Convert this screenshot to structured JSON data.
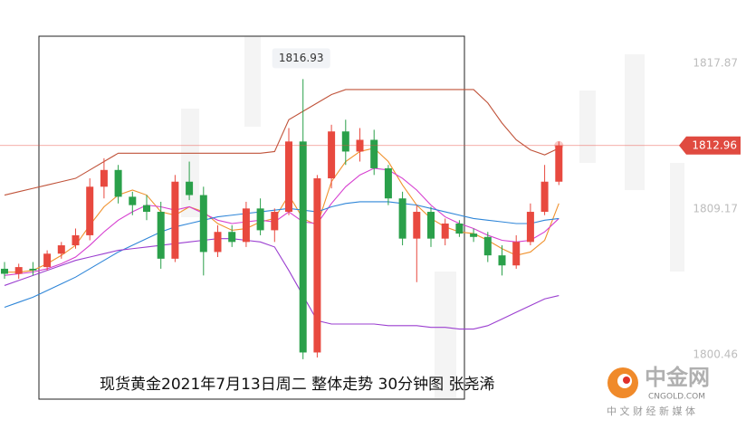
{
  "chart_data": {
    "type": "candlestick",
    "caption": "现货黄金2021年7月13日周二 整体走势  30分钟图 张尧浠",
    "logo": {
      "name": "中金网",
      "site": "CNGOLD.COM",
      "slogan": "中 文 财 经 新 媒 体"
    },
    "up_color": "#e8493f",
    "down_color": "#2aa04a",
    "ylim": [
      1796.03,
      1821.65
    ],
    "yticks": [
      1800.46,
      1809.17,
      1817.87
    ],
    "open": [
      1805.6,
      1805.3,
      1805.6,
      1805.7,
      1806.5,
      1807.0,
      1807.6,
      1810.5,
      1811.5,
      1809.9,
      1809.4,
      1809.0,
      1806.2,
      1810.8,
      1810.0,
      1806.6,
      1807.8,
      1807.2,
      1809.2,
      1807.9,
      1809.0,
      1813.2,
      1800.6,
      1811.0,
      1813.8,
      1812.6,
      1813.3,
      1811.6,
      1809.8,
      1807.4,
      1809.0,
      1807.4,
      1808.3,
      1807.7,
      1807.5,
      1806.4,
      1805.8,
      1807.2,
      1809.0,
      1810.8
    ],
    "high": [
      1806.0,
      1805.9,
      1806.0,
      1806.7,
      1807.2,
      1808.0,
      1811.0,
      1812.2,
      1811.8,
      1810.2,
      1810.0,
      1809.6,
      1811.2,
      1812.0,
      1810.5,
      1808.2,
      1808.2,
      1809.6,
      1809.8,
      1809.2,
      1814.0,
      1816.93,
      1811.2,
      1814.2,
      1814.5,
      1814.0,
      1813.9,
      1811.8,
      1810.2,
      1809.4,
      1809.3,
      1808.6,
      1808.5,
      1808.0,
      1807.8,
      1807.0,
      1807.6,
      1809.5,
      1811.8,
      1813.2
    ],
    "low": [
      1805.0,
      1805.0,
      1805.2,
      1805.5,
      1806.2,
      1806.8,
      1807.3,
      1809.8,
      1809.5,
      1808.8,
      1808.5,
      1805.6,
      1806.0,
      1809.7,
      1805.2,
      1806.3,
      1806.9,
      1806.9,
      1807.6,
      1807.2,
      1808.8,
      1800.2,
      1800.3,
      1810.4,
      1811.8,
      1812.0,
      1811.2,
      1809.4,
      1807.0,
      1804.8,
      1806.9,
      1807.0,
      1807.5,
      1807.2,
      1806.0,
      1805.2,
      1805.6,
      1807.0,
      1808.8,
      1810.6
    ],
    "close": [
      1805.3,
      1805.7,
      1805.5,
      1806.5,
      1807.0,
      1807.6,
      1810.5,
      1811.5,
      1809.9,
      1809.4,
      1809.0,
      1806.2,
      1810.8,
      1810.0,
      1806.6,
      1807.8,
      1807.2,
      1809.2,
      1807.9,
      1809.0,
      1813.2,
      1800.6,
      1811.0,
      1813.8,
      1812.6,
      1813.3,
      1811.6,
      1809.8,
      1807.4,
      1809.0,
      1807.4,
      1808.3,
      1807.7,
      1807.5,
      1806.4,
      1805.8,
      1807.2,
      1809.0,
      1810.8,
      1812.96
    ],
    "overlays": [
      {
        "color": "#c0533a",
        "values": [
          1810.0,
          1810.2,
          1810.4,
          1810.6,
          1810.8,
          1811.0,
          1811.5,
          1812.0,
          1812.5,
          1812.5,
          1812.5,
          1812.5,
          1812.5,
          1812.5,
          1812.5,
          1812.5,
          1812.5,
          1812.5,
          1812.5,
          1812.6,
          1814.5,
          1815.0,
          1815.5,
          1816.0,
          1816.3,
          1816.3,
          1816.3,
          1816.3,
          1816.3,
          1816.3,
          1816.3,
          1816.3,
          1816.3,
          1816.3,
          1815.5,
          1814.3,
          1813.3,
          1812.7,
          1812.4,
          1812.8
        ]
      },
      {
        "color": "#f0922e",
        "values": [
          1805.4,
          1805.4,
          1805.5,
          1805.9,
          1806.4,
          1807.0,
          1808.2,
          1809.3,
          1810.0,
          1810.3,
          1810.0,
          1809.0,
          1808.8,
          1809.3,
          1809.0,
          1808.3,
          1807.9,
          1808.0,
          1808.4,
          1808.6,
          1810.0,
          1808.6,
          1808.2,
          1810.8,
          1812.0,
          1812.6,
          1812.8,
          1812.0,
          1810.6,
          1809.4,
          1808.6,
          1808.1,
          1807.8,
          1807.7,
          1807.3,
          1806.8,
          1806.4,
          1806.6,
          1807.3,
          1809.5
        ]
      },
      {
        "color": "#d63fd0",
        "values": [
          1805.2,
          1805.3,
          1805.4,
          1805.6,
          1805.9,
          1806.3,
          1807.0,
          1807.8,
          1808.5,
          1809.0,
          1809.4,
          1809.3,
          1809.1,
          1809.3,
          1808.9,
          1808.5,
          1808.3,
          1808.4,
          1808.5,
          1808.4,
          1809.0,
          1808.4,
          1808.3,
          1809.5,
          1810.5,
          1811.2,
          1811.6,
          1811.5,
          1811.0,
          1810.3,
          1809.4,
          1808.7,
          1808.3,
          1808.0,
          1807.6,
          1807.3,
          1807.2,
          1807.3,
          1807.8,
          1808.6
        ]
      },
      {
        "color": "#2f86d8",
        "values": [
          1803.3,
          1803.6,
          1803.9,
          1804.3,
          1804.7,
          1805.1,
          1805.6,
          1806.1,
          1806.6,
          1807.0,
          1807.4,
          1807.8,
          1808.1,
          1808.3,
          1808.5,
          1808.7,
          1808.8,
          1808.9,
          1809.0,
          1809.1,
          1809.2,
          1809.1,
          1809.0,
          1809.3,
          1809.5,
          1809.6,
          1809.6,
          1809.6,
          1809.5,
          1809.4,
          1809.2,
          1809.0,
          1808.8,
          1808.6,
          1808.5,
          1808.4,
          1808.3,
          1808.3,
          1808.5,
          1808.6
        ]
      },
      {
        "color": "#9b3fd0",
        "values": [
          1804.6,
          1804.9,
          1805.2,
          1805.5,
          1805.8,
          1806.1,
          1806.3,
          1806.5,
          1806.7,
          1806.8,
          1806.9,
          1807.0,
          1807.1,
          1807.2,
          1807.3,
          1807.4,
          1807.4,
          1807.3,
          1807.2,
          1806.9,
          1805.5,
          1804.0,
          1802.5,
          1802.3,
          1802.3,
          1802.3,
          1802.3,
          1802.2,
          1802.2,
          1802.2,
          1802.1,
          1802.1,
          1802.0,
          1802.0,
          1802.2,
          1802.6,
          1803.0,
          1803.4,
          1803.8,
          1804.0
        ]
      }
    ]
  }
}
